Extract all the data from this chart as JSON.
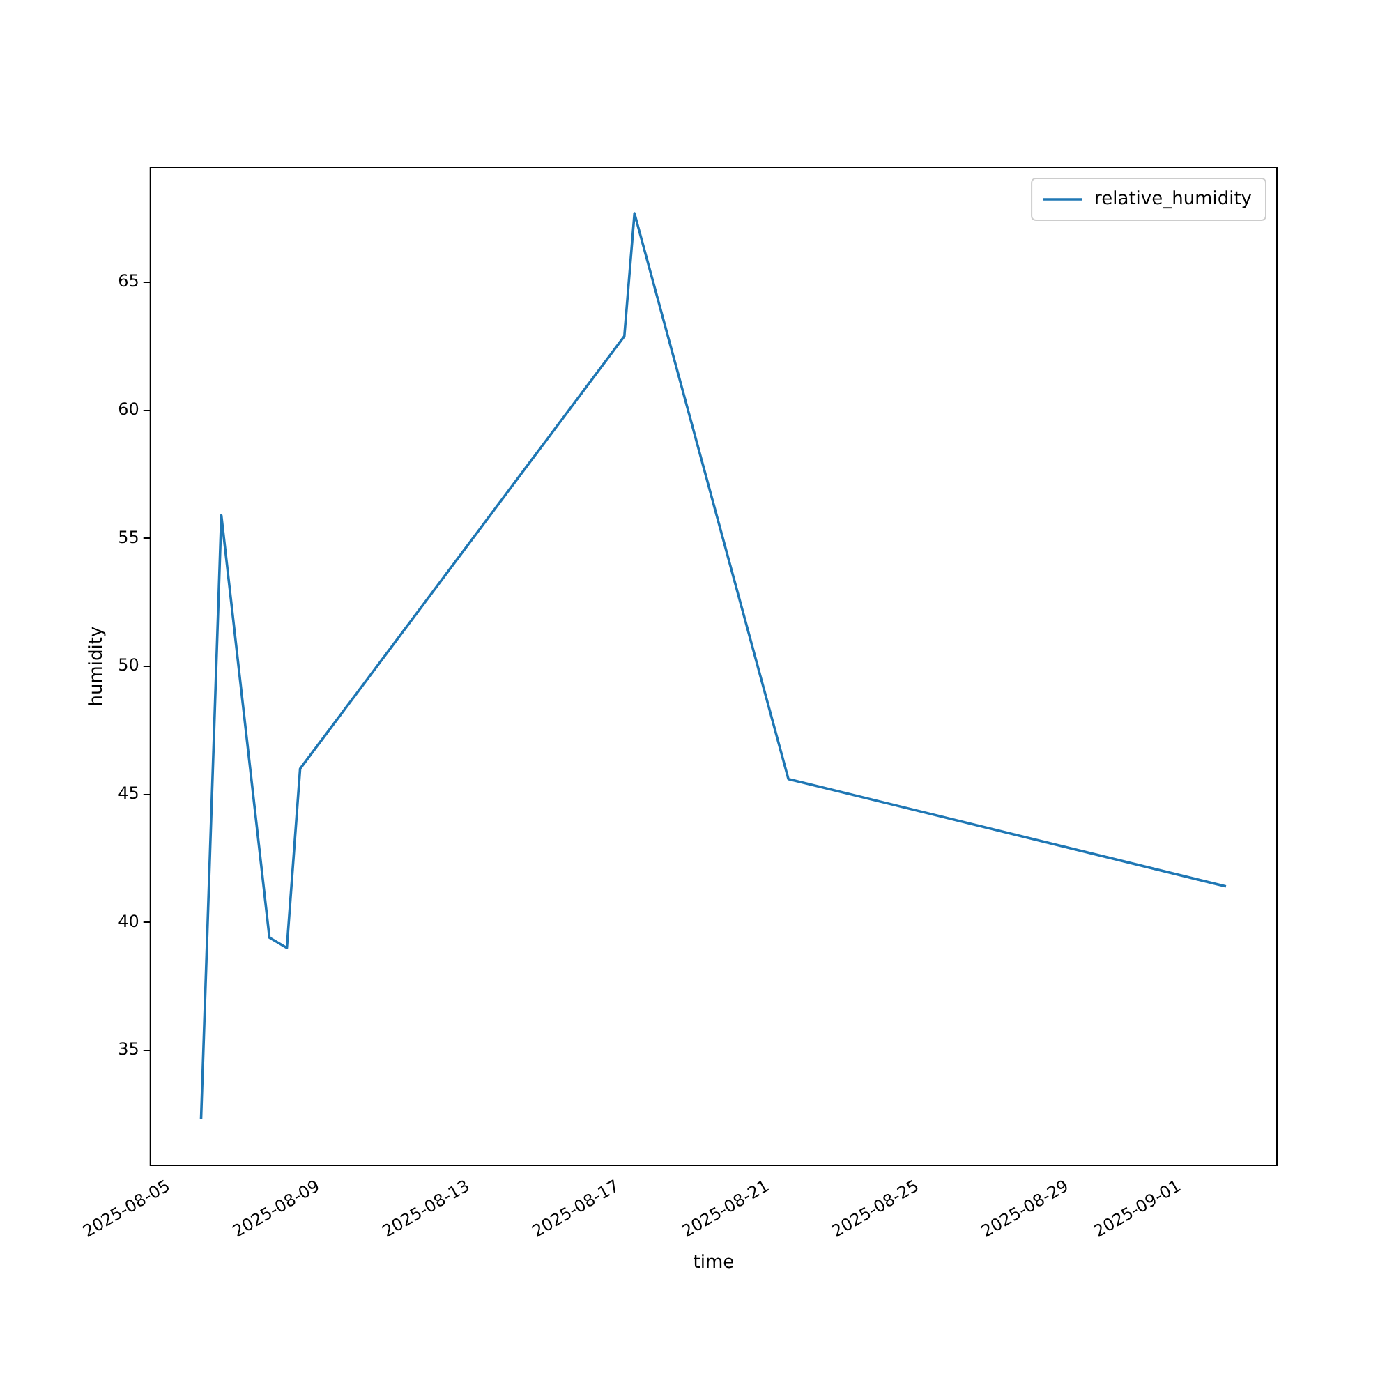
{
  "chart_data": {
    "type": "line",
    "xlabel": "time",
    "ylabel": "humidity",
    "x": [
      "2025-08-05T20:30",
      "2025-08-06T09:30",
      "2025-08-07T16:20",
      "2025-08-08T03:30",
      "2025-08-08T12:00",
      "2025-08-17T03:50",
      "2025-08-17T10:20",
      "2025-08-21T13:00",
      "2025-09-02T05:30"
    ],
    "series": [
      {
        "name": "relative_humidity",
        "color": "#1f77b4",
        "values": [
          32.3,
          55.9,
          39.4,
          39.0,
          46.0,
          62.9,
          67.7,
          45.6,
          41.4
        ]
      }
    ],
    "xlim": [
      "2025-08-04T12:00",
      "2025-09-03T14:10"
    ],
    "xticks": [
      "2025-08-05",
      "2025-08-09",
      "2025-08-13",
      "2025-08-17",
      "2025-08-21",
      "2025-08-25",
      "2025-08-29",
      "2025-09-01"
    ],
    "ylim": [
      30.5,
      69.5
    ],
    "yticks": [
      35,
      40,
      45,
      50,
      55,
      60,
      65
    ],
    "grid": false,
    "legend": "top right",
    "marker": "none",
    "line_style": "solid"
  }
}
